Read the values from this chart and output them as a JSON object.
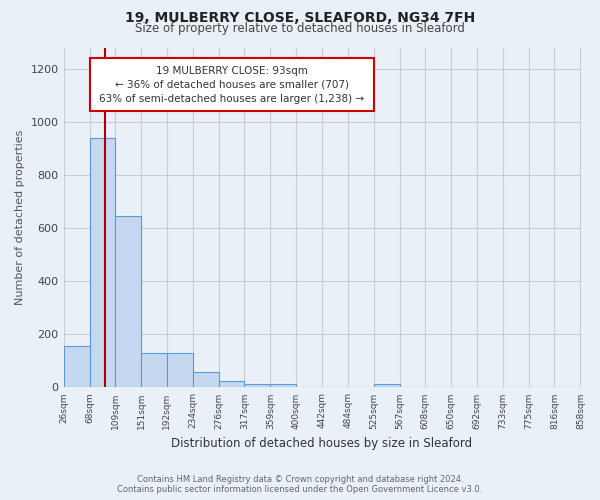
{
  "title_line1": "19, MULBERRY CLOSE, SLEAFORD, NG34 7FH",
  "title_line2": "Size of property relative to detached houses in Sleaford",
  "xlabel": "Distribution of detached houses by size in Sleaford",
  "ylabel": "Number of detached properties",
  "bin_labels": [
    "26sqm",
    "68sqm",
    "109sqm",
    "151sqm",
    "192sqm",
    "234sqm",
    "276sqm",
    "317sqm",
    "359sqm",
    "400sqm",
    "442sqm",
    "484sqm",
    "525sqm",
    "567sqm",
    "608sqm",
    "650sqm",
    "692sqm",
    "733sqm",
    "775sqm",
    "816sqm",
    "858sqm"
  ],
  "bin_edges": [
    26,
    68,
    109,
    151,
    192,
    234,
    276,
    317,
    359,
    400,
    442,
    484,
    525,
    567,
    608,
    650,
    692,
    733,
    775,
    816,
    858
  ],
  "bar_heights": [
    155,
    940,
    645,
    130,
    130,
    57,
    25,
    13,
    13,
    0,
    0,
    0,
    13,
    0,
    0,
    0,
    0,
    0,
    0,
    0,
    0
  ],
  "bar_color": "#c5d8f0",
  "bar_edge_color": "#5b9bd5",
  "property_size": 93,
  "red_line_color": "#aa0000",
  "annotation_text": "19 MULBERRY CLOSE: 93sqm\n← 36% of detached houses are smaller (707)\n63% of semi-detached houses are larger (1,238) →",
  "annotation_box_color": "#ffffff",
  "annotation_box_edge": "#cc0000",
  "annotation_xleft": 68,
  "annotation_xright": 525,
  "annotation_ytop": 1240,
  "annotation_ybottom": 1040,
  "ylim": [
    0,
    1280
  ],
  "yticks": [
    0,
    200,
    400,
    600,
    800,
    1000,
    1200
  ],
  "grid_color": "#cccccc",
  "bg_color": "#eaf0f8",
  "footer_line1": "Contains HM Land Registry data © Crown copyright and database right 2024.",
  "footer_line2": "Contains public sector information licensed under the Open Government Licence v3.0."
}
